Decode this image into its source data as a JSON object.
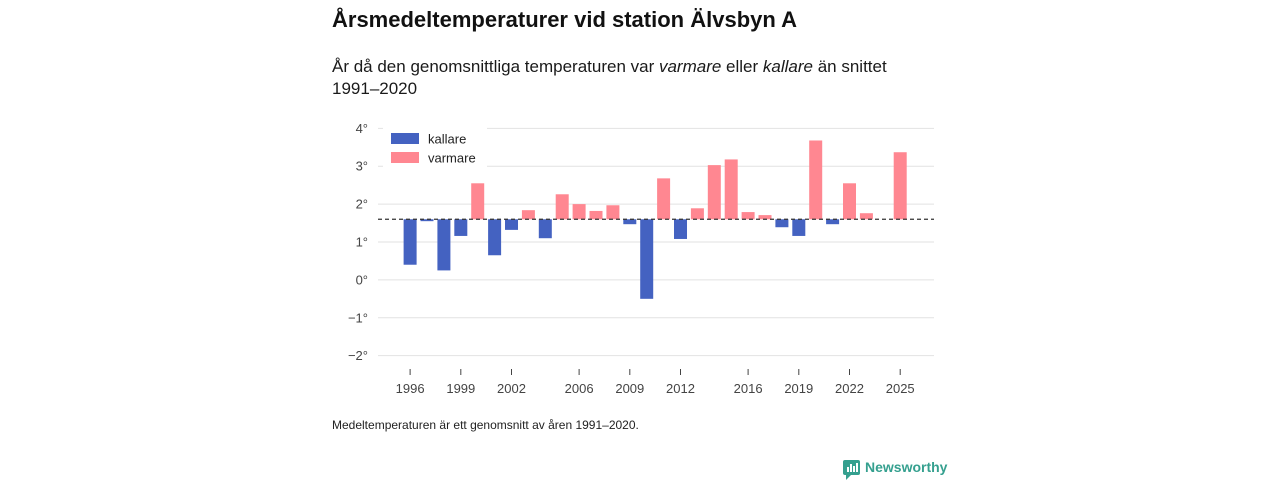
{
  "footnote": "Medeltemperaturen är ett genomsnitt av åren 1991–2020.",
  "brand": {
    "name": "Newsworthy",
    "icon": "newsworthy-logo-icon",
    "color": "#35a08f"
  },
  "chart_data": {
    "type": "bar",
    "title": "Årsmedeltemperaturer vid station Älvsbyn A",
    "subtitle": {
      "before": "År då den genomsnittliga temperaturen var ",
      "warmer": "varmare",
      "middle": " eller ",
      "colder": "kallare",
      "after": " än snittet 1991–2020"
    },
    "xlabel": "",
    "ylabel": "",
    "x": [
      1996,
      1997,
      1998,
      1999,
      2000,
      2001,
      2002,
      2003,
      2004,
      2005,
      2006,
      2007,
      2008,
      2009,
      2010,
      2011,
      2012,
      2013,
      2014,
      2015,
      2016,
      2017,
      2018,
      2019,
      2020,
      2021,
      2022,
      2023,
      2024,
      2025
    ],
    "values": [
      0.4,
      1.55,
      0.25,
      1.16,
      2.55,
      0.65,
      1.32,
      1.84,
      1.1,
      2.26,
      2.0,
      1.82,
      1.97,
      1.47,
      -0.5,
      2.68,
      1.08,
      1.89,
      3.03,
      3.18,
      1.79,
      1.71,
      1.39,
      1.16,
      3.68,
      1.47,
      2.55,
      1.76,
      null,
      3.37
    ],
    "baseline": 1.6,
    "baseline_style": "dashed",
    "xlim": [
      1994.1,
      2027
    ],
    "ylim": [
      -2.3,
      4.3
    ],
    "y_ticks": [
      -2,
      -1,
      0,
      1,
      2,
      3,
      4
    ],
    "y_tick_labels": [
      "−2°",
      "−1°",
      "0°",
      "1°",
      "2°",
      "3°",
      "4°"
    ],
    "x_ticks": [
      1996,
      1999,
      2002,
      2006,
      2009,
      2012,
      2016,
      2019,
      2022,
      2025
    ],
    "x_tick_labels": [
      "1996",
      "1999",
      "2002",
      "2006",
      "2009",
      "2012",
      "2016",
      "2019",
      "2022",
      "2025"
    ],
    "grid": true,
    "legend_position": "top-left",
    "legend": [
      {
        "label": "kallare",
        "color": "#4462c1"
      },
      {
        "label": "varmare",
        "color": "#ff8791"
      }
    ]
  }
}
